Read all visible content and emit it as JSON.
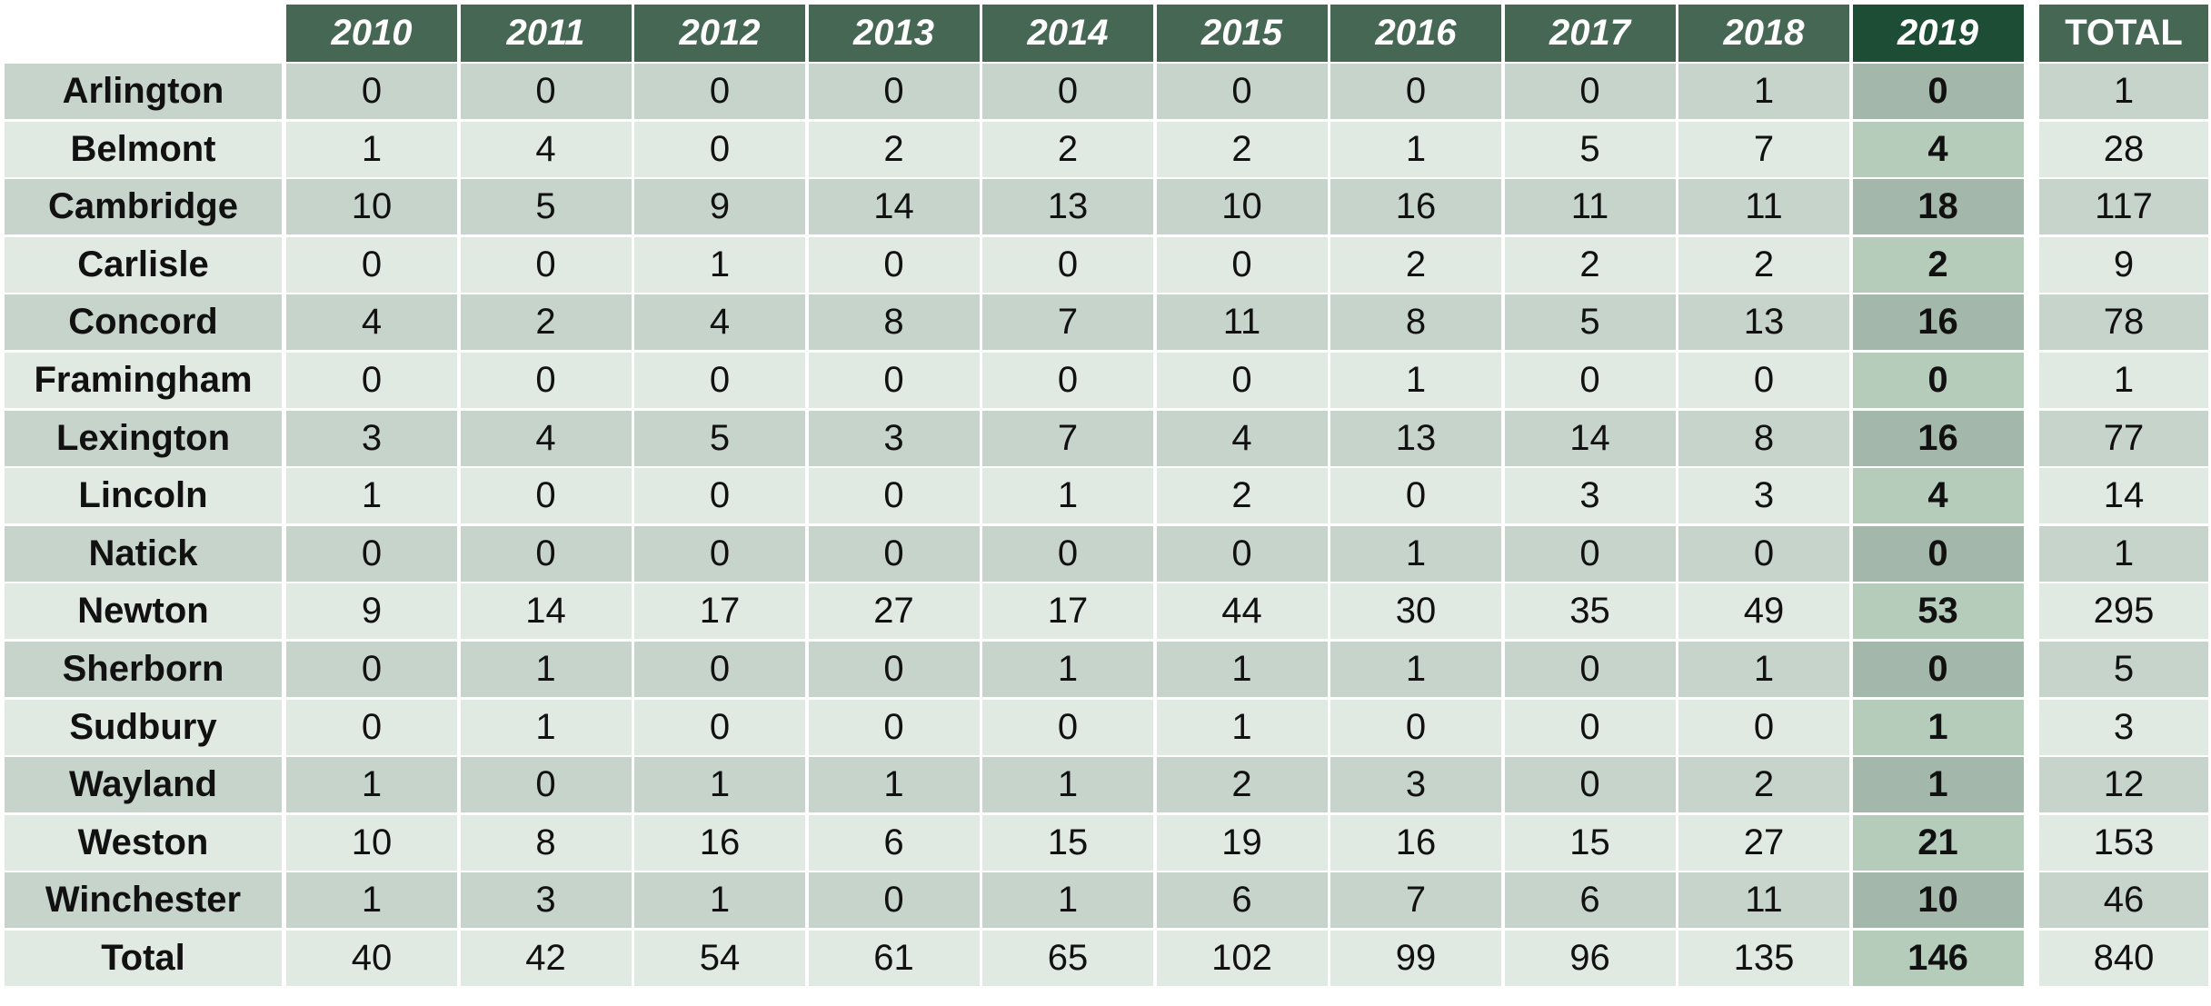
{
  "chart_data": {
    "type": "table",
    "columns": [
      "2010",
      "2011",
      "2012",
      "2013",
      "2014",
      "2015",
      "2016",
      "2017",
      "2018",
      "2019",
      "TOTAL"
    ],
    "rows": [
      {
        "label": "Arlington",
        "values": [
          0,
          0,
          0,
          0,
          0,
          0,
          0,
          0,
          1,
          0,
          1
        ]
      },
      {
        "label": "Belmont",
        "values": [
          1,
          4,
          0,
          2,
          2,
          2,
          1,
          5,
          7,
          4,
          28
        ]
      },
      {
        "label": "Cambridge",
        "values": [
          10,
          5,
          9,
          14,
          13,
          10,
          16,
          11,
          11,
          18,
          117
        ]
      },
      {
        "label": "Carlisle",
        "values": [
          0,
          0,
          1,
          0,
          0,
          0,
          2,
          2,
          2,
          2,
          9
        ]
      },
      {
        "label": "Concord",
        "values": [
          4,
          2,
          4,
          8,
          7,
          11,
          8,
          5,
          13,
          16,
          78
        ]
      },
      {
        "label": "Framingham",
        "values": [
          0,
          0,
          0,
          0,
          0,
          0,
          1,
          0,
          0,
          0,
          1
        ]
      },
      {
        "label": "Lexington",
        "values": [
          3,
          4,
          5,
          3,
          7,
          4,
          13,
          14,
          8,
          16,
          77
        ]
      },
      {
        "label": "Lincoln",
        "values": [
          1,
          0,
          0,
          0,
          1,
          2,
          0,
          3,
          3,
          4,
          14
        ]
      },
      {
        "label": "Natick",
        "values": [
          0,
          0,
          0,
          0,
          0,
          0,
          1,
          0,
          0,
          0,
          1
        ]
      },
      {
        "label": "Newton",
        "values": [
          9,
          14,
          17,
          27,
          17,
          44,
          30,
          35,
          49,
          53,
          295
        ]
      },
      {
        "label": "Sherborn",
        "values": [
          0,
          1,
          0,
          0,
          1,
          1,
          1,
          0,
          1,
          0,
          5
        ]
      },
      {
        "label": "Sudbury",
        "values": [
          0,
          1,
          0,
          0,
          0,
          1,
          0,
          0,
          0,
          1,
          3
        ]
      },
      {
        "label": "Wayland",
        "values": [
          1,
          0,
          1,
          1,
          1,
          2,
          3,
          0,
          2,
          1,
          12
        ]
      },
      {
        "label": "Weston",
        "values": [
          10,
          8,
          16,
          6,
          15,
          19,
          16,
          15,
          27,
          21,
          153
        ]
      },
      {
        "label": "Winchester",
        "values": [
          1,
          3,
          1,
          0,
          1,
          6,
          7,
          6,
          11,
          10,
          46
        ]
      },
      {
        "label": "Total",
        "values": [
          40,
          42,
          54,
          61,
          65,
          102,
          99,
          96,
          135,
          146,
          840
        ]
      }
    ],
    "highlight_column": "2019",
    "colors": {
      "header": "#476755",
      "header_highlight": "#1e4d35",
      "row_dark": "#c7d4cc",
      "row_light": "#e1e9e3",
      "highlight_dark": "#a3b7aa",
      "highlight_light": "#b5ccbb"
    }
  }
}
